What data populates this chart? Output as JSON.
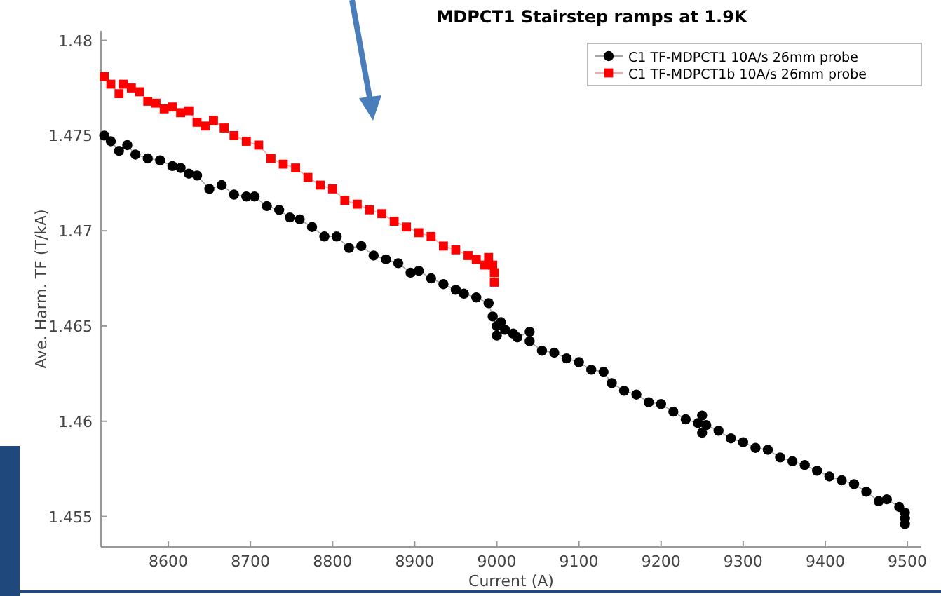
{
  "chart_data": {
    "type": "line",
    "title": "MDPCT1 Stairstep ramps at 1.9K",
    "xlabel": "Current (A)",
    "ylabel": "Ave. Harm. TF (T/kA)",
    "xlim": [
      8518,
      9517
    ],
    "ylim": [
      1.4534,
      1.4805
    ],
    "xticks": [
      8600,
      8700,
      8800,
      8900,
      9000,
      9100,
      9200,
      9300,
      9400,
      9500
    ],
    "yticks": [
      1.455,
      1.46,
      1.465,
      1.47,
      1.475,
      1.48
    ],
    "grid": false,
    "legend": "top right",
    "series": [
      {
        "name": "C1 TF-MDPCT1 10A/s 26mm probe",
        "color": "#000000",
        "marker": "circle",
        "x": [
          8522,
          8530,
          8540,
          8550,
          8560,
          8575,
          8590,
          8605,
          8615,
          8625,
          8635,
          8650,
          8665,
          8680,
          8695,
          8705,
          8720,
          8735,
          8748,
          8760,
          8775,
          8790,
          8805,
          8820,
          8835,
          8850,
          8865,
          8880,
          8895,
          8905,
          8920,
          8935,
          8950,
          8960,
          8975,
          8990,
          8995,
          9000,
          9000,
          9005,
          9010,
          9020,
          9025,
          9040,
          9040,
          9055,
          9070,
          9085,
          9100,
          9115,
          9130,
          9140,
          9155,
          9170,
          9185,
          9200,
          9215,
          9230,
          9245,
          9250,
          9250,
          9255,
          9270,
          9285,
          9300,
          9315,
          9330,
          9345,
          9360,
          9375,
          9390,
          9405,
          9420,
          9435,
          9450,
          9465,
          9475,
          9490,
          9497,
          9497,
          9497
        ],
        "values": [
          1.475,
          1.4747,
          1.4742,
          1.4745,
          1.474,
          1.4738,
          1.4737,
          1.4734,
          1.4733,
          1.473,
          1.4729,
          1.4722,
          1.4724,
          1.4719,
          1.4718,
          1.4718,
          1.4713,
          1.4711,
          1.4707,
          1.4706,
          1.4702,
          1.4697,
          1.4697,
          1.4691,
          1.4692,
          1.4687,
          1.4685,
          1.4683,
          1.4678,
          1.4679,
          1.4675,
          1.4672,
          1.4669,
          1.4667,
          1.4665,
          1.4662,
          1.4655,
          1.465,
          1.4645,
          1.4652,
          1.4648,
          1.4646,
          1.4644,
          1.4647,
          1.4642,
          1.4637,
          1.4636,
          1.4633,
          1.4631,
          1.4627,
          1.4626,
          1.462,
          1.4616,
          1.4614,
          1.461,
          1.4609,
          1.4605,
          1.4601,
          1.4599,
          1.4603,
          1.4594,
          1.4598,
          1.4595,
          1.4591,
          1.4589,
          1.4586,
          1.4585,
          1.4581,
          1.4579,
          1.4577,
          1.4574,
          1.4571,
          1.4569,
          1.4567,
          1.4563,
          1.4558,
          1.4559,
          1.4555,
          1.4552,
          1.4549,
          1.4546
        ]
      },
      {
        "name": "C1 TF-MDPCT1b 10A/s 26mm probe",
        "color": "#ff0000",
        "marker": "square",
        "x": [
          8522,
          8530,
          8540,
          8545,
          8555,
          8565,
          8575,
          8585,
          8595,
          8605,
          8615,
          8625,
          8635,
          8645,
          8655,
          8668,
          8680,
          8695,
          8710,
          8725,
          8740,
          8755,
          8770,
          8785,
          8800,
          8815,
          8830,
          8845,
          8860,
          8875,
          8890,
          8905,
          8920,
          8935,
          8950,
          8965,
          8975,
          8985,
          8990,
          8995,
          8997,
          8997
        ],
        "values": [
          1.4781,
          1.4777,
          1.4772,
          1.4777,
          1.4775,
          1.4773,
          1.4768,
          1.4767,
          1.4764,
          1.4765,
          1.4762,
          1.4763,
          1.4757,
          1.4755,
          1.4758,
          1.4754,
          1.475,
          1.4747,
          1.4745,
          1.4738,
          1.4735,
          1.4733,
          1.4728,
          1.4724,
          1.4722,
          1.4716,
          1.4714,
          1.4711,
          1.4709,
          1.4705,
          1.4702,
          1.4699,
          1.4697,
          1.4692,
          1.469,
          1.4687,
          1.4685,
          1.4682,
          1.4686,
          1.4682,
          1.4678,
          1.4673
        ]
      }
    ]
  }
}
